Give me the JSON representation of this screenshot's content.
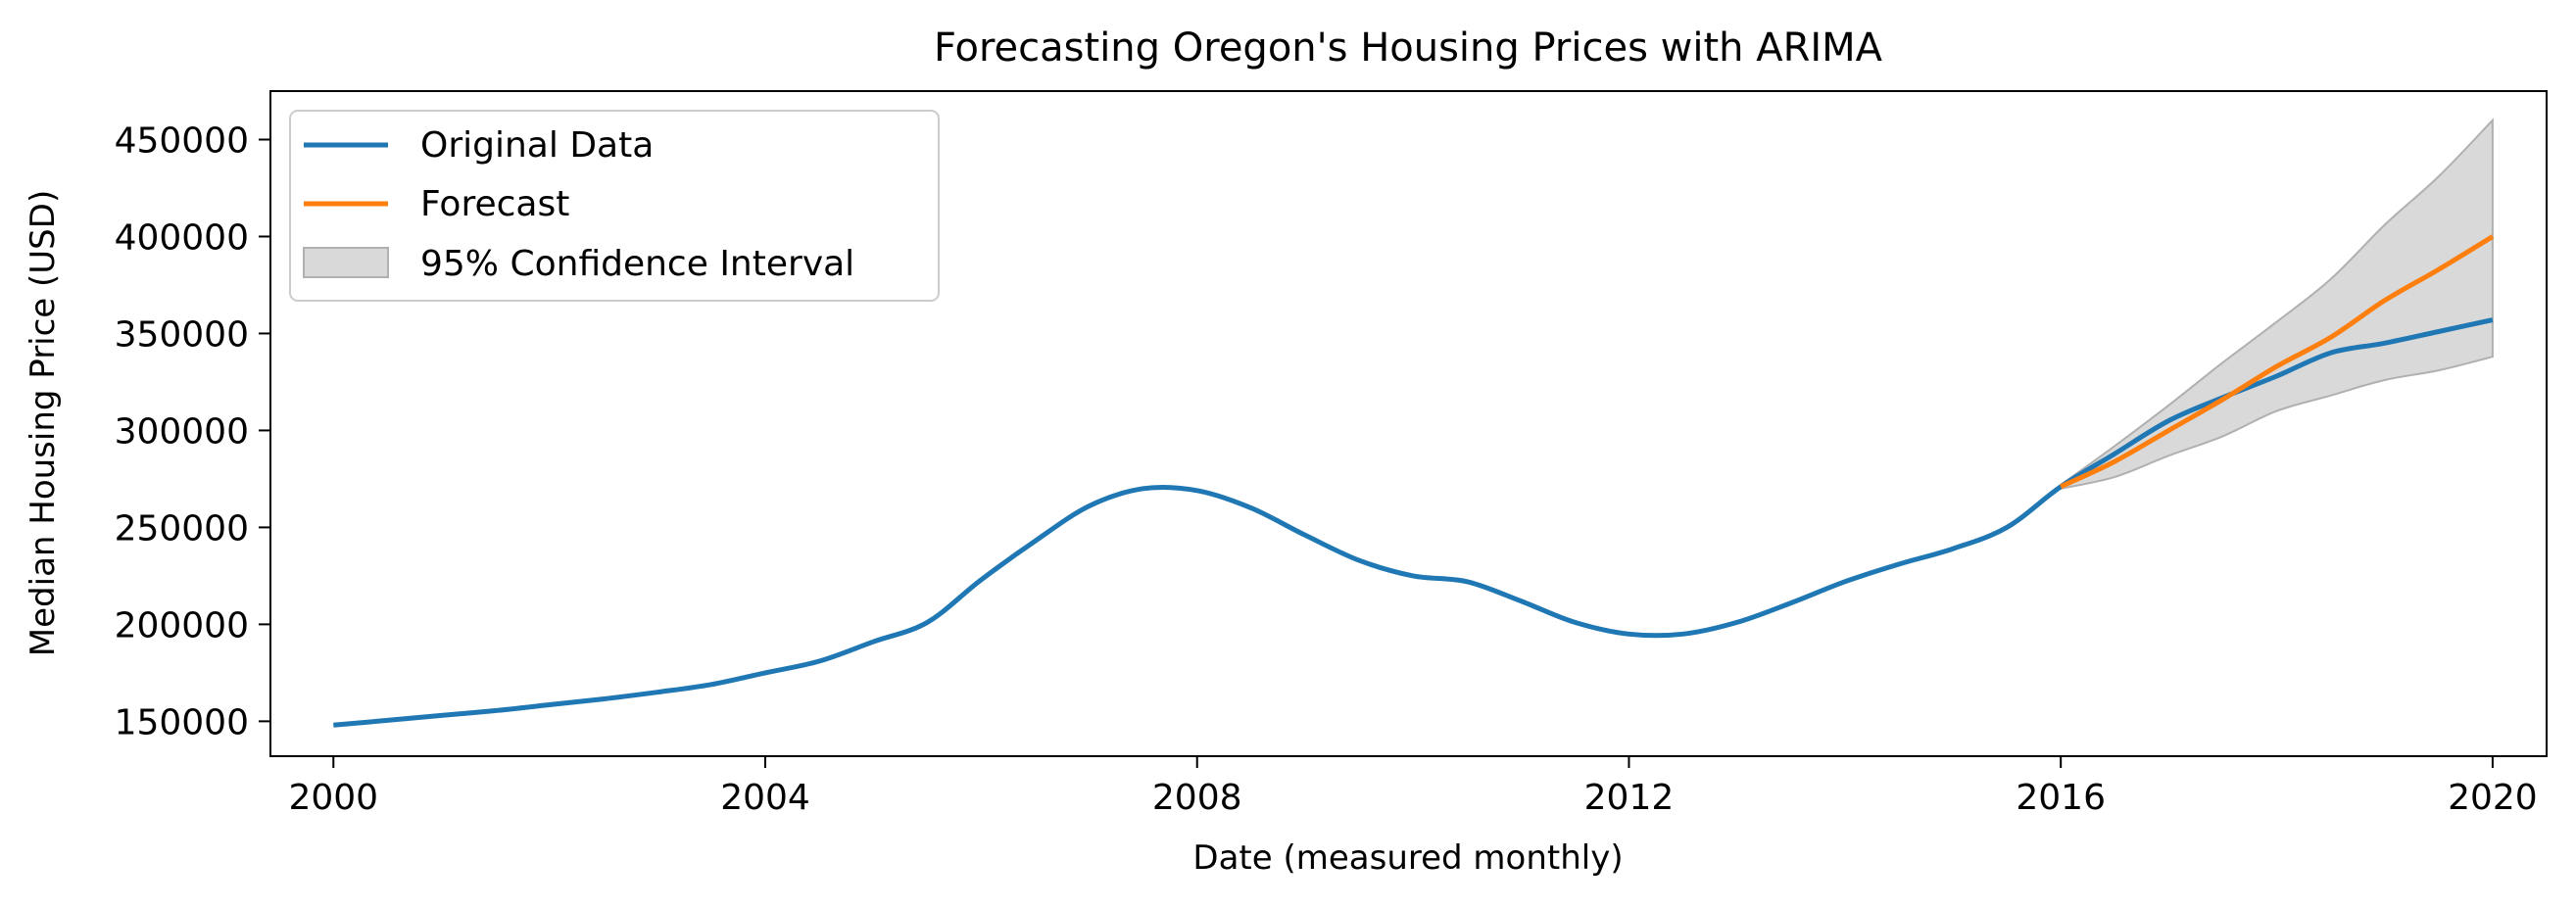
{
  "chart_data": {
    "type": "line",
    "title": "Forecasting Oregon's Housing Prices with ARIMA",
    "xlabel": "Date (measured monthly)",
    "ylabel": "Median Housing Price (USD)",
    "xlim": [
      "1999-06",
      "2020-07"
    ],
    "ylim": [
      132000,
      475000
    ],
    "x_ticks": [
      {
        "date": "2000-01",
        "label": "2000"
      },
      {
        "date": "2004-01",
        "label": "2004"
      },
      {
        "date": "2008-01",
        "label": "2008"
      },
      {
        "date": "2012-01",
        "label": "2012"
      },
      {
        "date": "2016-01",
        "label": "2016"
      },
      {
        "date": "2020-01",
        "label": "2020"
      }
    ],
    "y_ticks": [
      150000,
      200000,
      250000,
      300000,
      350000,
      400000,
      450000
    ],
    "grid": false,
    "legend": {
      "placement": "top-left",
      "entries": [
        "Original Data",
        "Forecast",
        "95% Confidence Interval"
      ]
    },
    "colors": {
      "original": "#1f77b4",
      "forecast": "#ff7f0e",
      "confidence": "#d9d9d9",
      "confidence_edge": "#b0b0b0"
    },
    "series": [
      {
        "name": "Original Data",
        "points": [
          [
            "2000-01",
            148000
          ],
          [
            "2000-07",
            150500
          ],
          [
            "2001-01",
            153000
          ],
          [
            "2001-07",
            155500
          ],
          [
            "2002-01",
            158500
          ],
          [
            "2002-07",
            161500
          ],
          [
            "2003-01",
            165000
          ],
          [
            "2003-07",
            169000
          ],
          [
            "2004-01",
            175000
          ],
          [
            "2004-07",
            181000
          ],
          [
            "2005-01",
            191000
          ],
          [
            "2005-07",
            201000
          ],
          [
            "2006-01",
            223000
          ],
          [
            "2006-07",
            243000
          ],
          [
            "2007-01",
            261000
          ],
          [
            "2007-07",
            270000
          ],
          [
            "2008-01",
            269000
          ],
          [
            "2008-07",
            260000
          ],
          [
            "2009-01",
            246000
          ],
          [
            "2009-07",
            233000
          ],
          [
            "2010-01",
            225000
          ],
          [
            "2010-07",
            222000
          ],
          [
            "2011-01",
            212000
          ],
          [
            "2011-07",
            201000
          ],
          [
            "2012-01",
            195000
          ],
          [
            "2012-07",
            195000
          ],
          [
            "2013-01",
            201000
          ],
          [
            "2013-07",
            211000
          ],
          [
            "2014-01",
            222000
          ],
          [
            "2014-07",
            231000
          ],
          [
            "2015-01",
            239000
          ],
          [
            "2015-07",
            250000
          ],
          [
            "2016-01",
            271000
          ],
          [
            "2016-07",
            288000
          ],
          [
            "2017-01",
            305000
          ],
          [
            "2017-07",
            317000
          ],
          [
            "2018-01",
            328000
          ],
          [
            "2018-07",
            340000
          ],
          [
            "2019-01",
            345000
          ],
          [
            "2019-07",
            351000
          ],
          [
            "2020-01",
            357000
          ]
        ]
      },
      {
        "name": "Forecast",
        "points": [
          [
            "2016-01",
            271000
          ],
          [
            "2016-07",
            284000
          ],
          [
            "2017-01",
            300000
          ],
          [
            "2017-07",
            316000
          ],
          [
            "2018-01",
            333000
          ],
          [
            "2018-07",
            348000
          ],
          [
            "2019-01",
            367000
          ],
          [
            "2019-07",
            383000
          ],
          [
            "2020-01",
            400000
          ]
        ]
      }
    ],
    "confidence_interval": {
      "name": "95% Confidence Interval",
      "points": [
        [
          "2016-01",
          270000,
          272000
        ],
        [
          "2016-07",
          276000,
          292000
        ],
        [
          "2017-01",
          287000,
          313000
        ],
        [
          "2017-07",
          297000,
          335000
        ],
        [
          "2018-01",
          310000,
          356000
        ],
        [
          "2018-07",
          318000,
          378000
        ],
        [
          "2019-01",
          326000,
          406000
        ],
        [
          "2019-07",
          331000,
          431000
        ],
        [
          "2020-01",
          338000,
          460000
        ]
      ]
    }
  }
}
